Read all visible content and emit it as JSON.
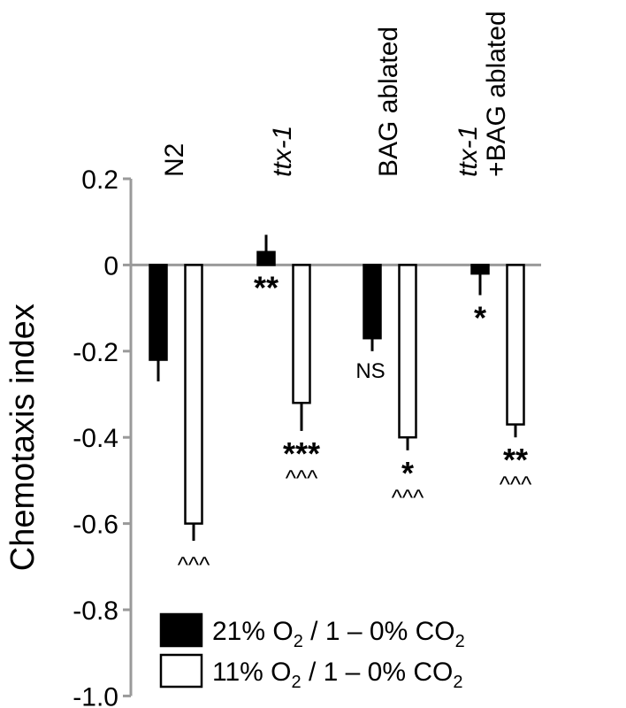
{
  "chart_data": {
    "type": "bar",
    "ylabel": "Chemotaxis index",
    "ylim": [
      -1.0,
      0.2
    ],
    "yticks": [
      "0.2",
      "0",
      "-0.2",
      "-0.4",
      "-0.6",
      "-0.8",
      "-1.0"
    ],
    "grid": false,
    "legend_position": "bottom",
    "categories": [
      {
        "lines": [
          "N2"
        ],
        "italic": [
          false
        ]
      },
      {
        "lines": [
          "ttx-1"
        ],
        "italic": [
          true
        ]
      },
      {
        "lines": [
          "BAG ablated"
        ],
        "italic": [
          false
        ]
      },
      {
        "lines": [
          "ttx-1",
          "+BAG ablated"
        ],
        "italic": [
          true,
          false
        ]
      }
    ],
    "series": [
      {
        "legend": {
          "pre": "21% O",
          "sub1": "2",
          "mid": " / 1 – 0% CO",
          "sub2": "2"
        },
        "color": "#000000",
        "values": [
          -0.22,
          0.03,
          -0.17,
          -0.02
        ],
        "errors": [
          0.05,
          0.04,
          0.03,
          0.05
        ],
        "annotations": [
          [],
          [
            "**"
          ],
          [
            "NS"
          ],
          [
            "*"
          ]
        ]
      },
      {
        "legend": {
          "pre": "11% O",
          "sub1": "2",
          "mid": " / 1 – 0% CO",
          "sub2": "2"
        },
        "color": "#ffffff",
        "values": [
          -0.6,
          -0.32,
          -0.4,
          -0.37
        ],
        "errors": [
          0.04,
          0.065,
          0.03,
          0.03
        ],
        "annotations": [
          [
            "^^^"
          ],
          [
            "***",
            "^^^"
          ],
          [
            "*",
            "^^^"
          ],
          [
            "**",
            "^^^"
          ]
        ]
      }
    ]
  }
}
